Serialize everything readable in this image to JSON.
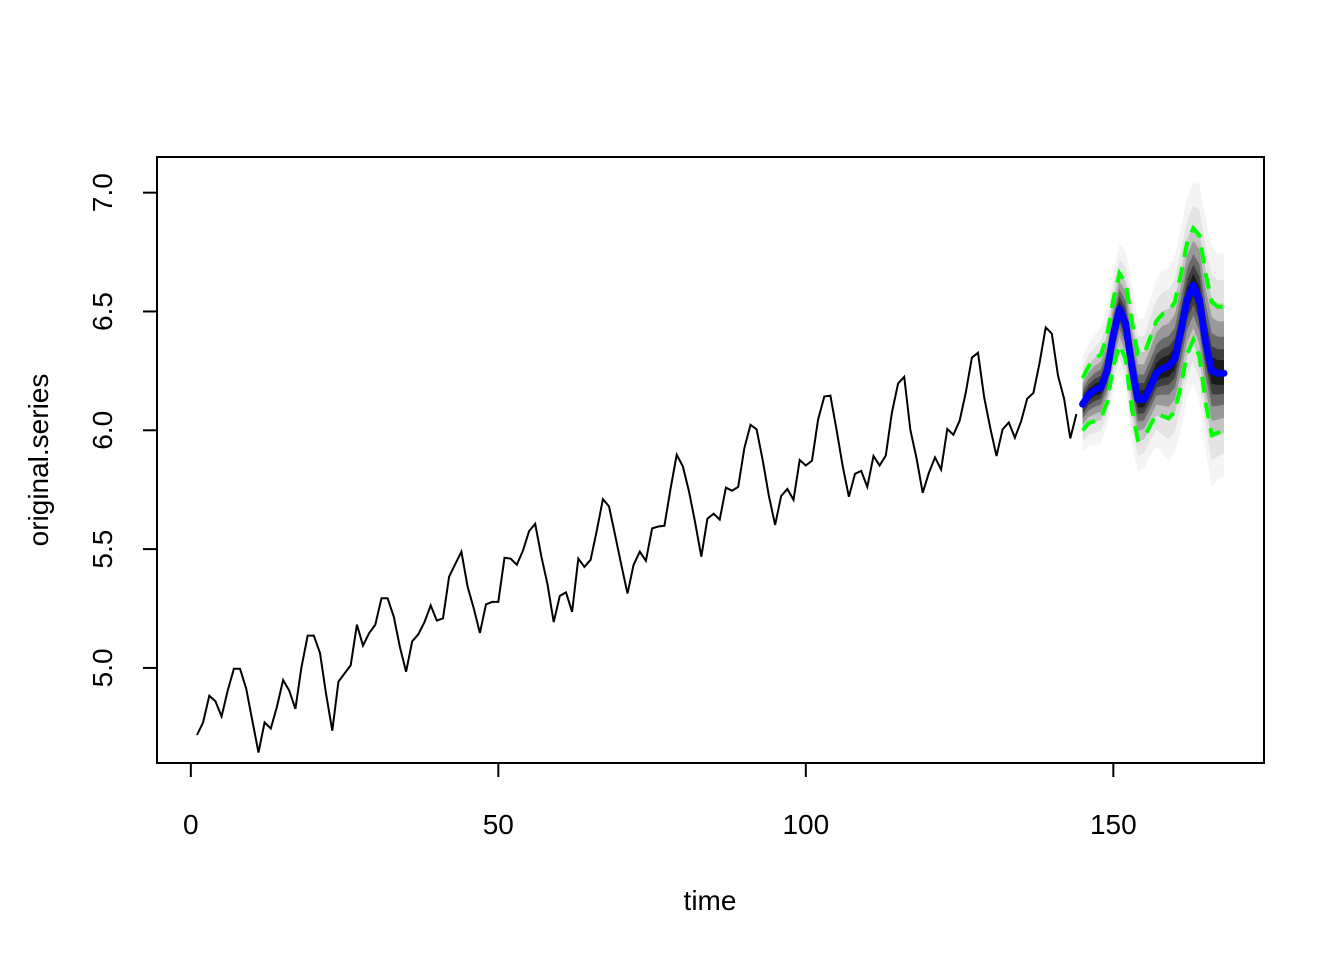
{
  "chart_data": {
    "type": "line",
    "title": "",
    "xlabel": "time",
    "ylabel": "original.series",
    "xlim": [
      -5.5,
      174.5
    ],
    "ylim": [
      4.6,
      7.15
    ],
    "x_ticks": [
      0,
      50,
      100,
      150
    ],
    "x_tick_labels": [
      "0",
      "50",
      "100",
      "150"
    ],
    "y_ticks": [
      5.0,
      5.5,
      6.0,
      6.5,
      7.0
    ],
    "y_tick_labels": [
      "5.0",
      "5.5",
      "6.0",
      "6.5",
      "7.0"
    ],
    "grid": false,
    "legend": "none",
    "series": [
      {
        "role": "observed",
        "color": "#000000",
        "x_start": 1,
        "values": [
          4.718,
          4.771,
          4.883,
          4.86,
          4.796,
          4.905,
          4.997,
          4.997,
          4.913,
          4.779,
          4.644,
          4.771,
          4.745,
          4.836,
          4.949,
          4.905,
          4.828,
          5.004,
          5.136,
          5.136,
          5.063,
          4.89,
          4.736,
          4.942,
          4.977,
          5.011,
          5.182,
          5.094,
          5.147,
          5.182,
          5.293,
          5.293,
          5.215,
          5.088,
          4.984,
          5.112,
          5.142,
          5.193,
          5.263,
          5.199,
          5.209,
          5.384,
          5.438,
          5.489,
          5.342,
          5.252,
          5.147,
          5.268,
          5.278,
          5.278,
          5.464,
          5.46,
          5.434,
          5.493,
          5.576,
          5.606,
          5.468,
          5.352,
          5.193,
          5.303,
          5.318,
          5.236,
          5.46,
          5.425,
          5.455,
          5.576,
          5.71,
          5.68,
          5.557,
          5.434,
          5.313,
          5.434,
          5.489,
          5.451,
          5.587,
          5.595,
          5.598,
          5.753,
          5.897,
          5.849,
          5.743,
          5.613,
          5.468,
          5.628,
          5.649,
          5.624,
          5.759,
          5.746,
          5.762,
          5.924,
          6.023,
          6.004,
          5.872,
          5.724,
          5.602,
          5.724,
          5.753,
          5.707,
          5.875,
          5.852,
          5.872,
          6.045,
          6.142,
          6.146,
          6.001,
          5.849,
          5.72,
          5.817,
          5.829,
          5.762,
          5.892,
          5.852,
          5.894,
          6.075,
          6.197,
          6.225,
          6.001,
          5.883,
          5.737,
          5.82,
          5.886,
          5.835,
          6.006,
          5.981,
          6.04,
          6.157,
          6.306,
          6.326,
          6.138,
          6.009,
          5.892,
          6.004,
          6.033,
          5.969,
          6.038,
          6.133,
          6.157,
          6.282,
          6.433,
          6.407,
          6.23,
          6.133,
          5.966,
          6.068
        ]
      },
      {
        "role": "forecast",
        "color": "#0000ff",
        "x_start": 145,
        "values": [
          6.11,
          6.15,
          6.17,
          6.18,
          6.25,
          6.4,
          6.51,
          6.45,
          6.27,
          6.13,
          6.13,
          6.18,
          6.24,
          6.26,
          6.27,
          6.3,
          6.42,
          6.55,
          6.61,
          6.55,
          6.37,
          6.25,
          6.24,
          6.24
        ]
      },
      {
        "role": "upper-bound",
        "color": "#00ff00",
        "x_start": 145,
        "values": [
          6.22,
          6.27,
          6.3,
          6.32,
          6.4,
          6.55,
          6.66,
          6.62,
          6.46,
          6.32,
          6.32,
          6.39,
          6.46,
          6.49,
          6.5,
          6.54,
          6.66,
          6.79,
          6.85,
          6.82,
          6.66,
          6.54,
          6.52,
          6.52
        ]
      },
      {
        "role": "lower-bound",
        "color": "#00ff00",
        "x_start": 145,
        "values": [
          6.0,
          6.03,
          6.04,
          6.05,
          6.12,
          6.27,
          6.36,
          6.3,
          6.09,
          5.96,
          5.97,
          6.02,
          6.07,
          6.06,
          6.05,
          6.08,
          6.19,
          6.32,
          6.38,
          6.31,
          6.12,
          5.98,
          5.99,
          6.0
        ]
      }
    ]
  }
}
